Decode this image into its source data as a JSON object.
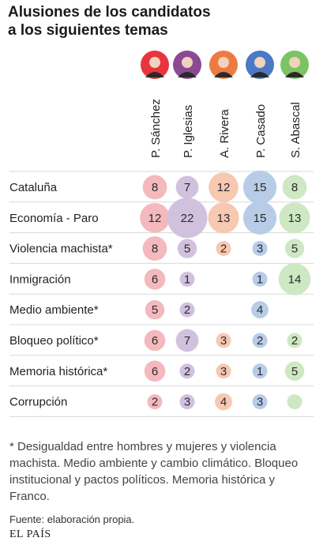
{
  "header": {
    "title_line1": "Alusiones de los candidatos",
    "title_line2": "a los siguientes temas"
  },
  "colors": {
    "P. Sánchez": "#f3b9bd",
    "P. Iglesias": "#d2c1de",
    "A. Rivera": "#f7c8b2",
    "P. Casado": "#b8cce8",
    "S. Abascal": "#cde8c3",
    "avatar_bg": [
      "#e8343e",
      "#8b4a91",
      "#ee7a43",
      "#4b79c4",
      "#7cc363"
    ]
  },
  "chart_data": {
    "type": "table",
    "candidates": [
      "P. Sánchez",
      "P. Iglesias",
      "A. Rivera",
      "P. Casado",
      "S. Abascal"
    ],
    "topics": [
      "Cataluña",
      "Economía - Paro",
      "Violencia machista*",
      "Inmigración",
      "Medio ambiente*",
      "Bloqueo político*",
      "Memoria histórica*",
      "Corrupción"
    ],
    "values": [
      [
        8,
        7,
        12,
        15,
        8
      ],
      [
        12,
        22,
        13,
        15,
        13
      ],
      [
        8,
        5,
        2,
        3,
        5
      ],
      [
        6,
        1,
        null,
        1,
        14
      ],
      [
        5,
        2,
        null,
        4,
        null
      ],
      [
        6,
        7,
        3,
        2,
        2
      ],
      [
        6,
        2,
        3,
        1,
        5
      ],
      [
        2,
        3,
        4,
        3,
        0
      ]
    ]
  },
  "footnote": "* Desigualdad entre hombres y mujeres y violencia machista. Medio ambiente y cambio climático. Bloqueo institucional y pactos políticos. Memoria histórica y Franco.",
  "source": "Fuente: elaboración propia.",
  "brand": "EL PAÍS"
}
